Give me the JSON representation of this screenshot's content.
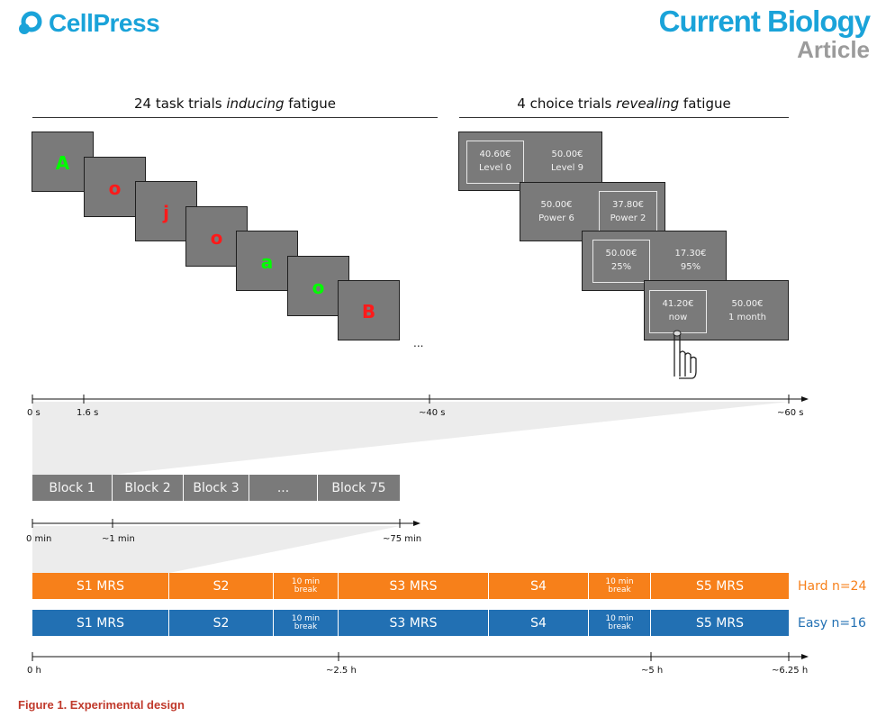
{
  "header": {
    "publisher": "CellPress",
    "journal": "Current Biology",
    "article_type": "Article"
  },
  "task_section": {
    "title_pre": "24 task trials ",
    "title_em": "inducing",
    "title_post": " fatigue",
    "letters": [
      {
        "char": "A",
        "color": "#00ff00"
      },
      {
        "char": "o",
        "color": "#ff1a1a"
      },
      {
        "char": "j",
        "color": "#ff1a1a"
      },
      {
        "char": "o",
        "color": "#ff1a1a"
      },
      {
        "char": "a",
        "color": "#00ff00"
      },
      {
        "char": "o",
        "color": "#00ff00"
      },
      {
        "char": "B",
        "color": "#ff1a1a"
      }
    ],
    "ellipsis": "..."
  },
  "choice_section": {
    "title_pre": "4 choice trials ",
    "title_em": "revealing",
    "title_post": " fatigue",
    "cards": [
      {
        "left_amount": "40.60€",
        "left_label": "Level 0",
        "right_amount": "50.00€",
        "right_label": "Level 9"
      },
      {
        "left_amount": "50.00€",
        "left_label": "Power 6",
        "right_amount": "37.80€",
        "right_label": "Power 2"
      },
      {
        "left_amount": "50.00€",
        "left_label": "25%",
        "right_amount": "17.30€",
        "right_label": "95%"
      },
      {
        "left_amount": "41.20€",
        "left_label": "now",
        "right_amount": "50.00€",
        "right_label": "1 month"
      }
    ]
  },
  "timeline_trials": {
    "ticks": [
      "0 s",
      "1.6 s",
      "~40 s",
      "~60 s"
    ]
  },
  "blocks": {
    "labels": [
      "Block 1",
      "Block 2",
      "Block 3",
      "...",
      "Block 75"
    ]
  },
  "timeline_blocks": {
    "ticks": [
      "0 min",
      "~1 min",
      "~75 min"
    ]
  },
  "sessions": {
    "hard": {
      "cells": [
        "S1 MRS",
        "S2",
        "10 min|break",
        "S3 MRS",
        "S4",
        "10 min|break",
        "S5 MRS"
      ],
      "label": "Hard n=24",
      "color": "#f7801a"
    },
    "easy": {
      "cells": [
        "S1 MRS",
        "S2",
        "10 min|break",
        "S3 MRS",
        "S4",
        "10 min|break",
        "S5 MRS"
      ],
      "label": "Easy n=16",
      "color": "#2270b3"
    }
  },
  "timeline_hours": {
    "ticks": [
      "0 h",
      "~2.5 h",
      "~5 h",
      "~6.25 h"
    ]
  },
  "caption": "Figure 1.  Experimental design"
}
